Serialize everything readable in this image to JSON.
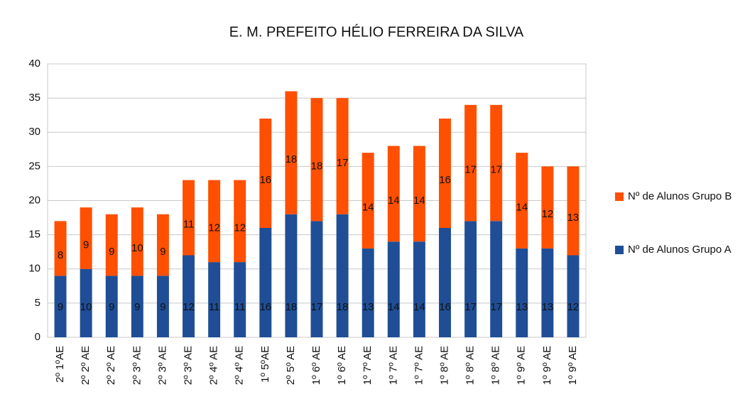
{
  "chart_data": {
    "type": "stacked_bar",
    "title": "E. M. PREFEITO HÉLIO FERREIRA DA SILVA",
    "categories": [
      "2º 1ºAE",
      "2º 2º AE",
      "2º 2º AE",
      "2º 3º AE",
      "2º 3º AE",
      "2º 3º AE",
      "2º 4º AE",
      "2º 4º AE",
      "1º 5ºAE",
      "2º 5º AE",
      "1º 6º AE",
      "1º 6º AE",
      "1º 7º AE",
      "1º 7º AE",
      "1º 7º AE",
      "1º 8º AE",
      "1º 8º AE",
      "1º 8º AE",
      "1º 9º AE",
      "1º 9º AE",
      "1º 9º AE"
    ],
    "series": [
      {
        "name": "Nº de Alunos Grupo A",
        "color": "#1f4e96",
        "values": [
          9,
          10,
          9,
          9,
          9,
          12,
          11,
          11,
          16,
          18,
          17,
          18,
          13,
          14,
          14,
          16,
          17,
          17,
          13,
          13,
          12
        ]
      },
      {
        "name": "Nº de Alunos Grupo B",
        "color": "#ff4f00",
        "values": [
          8,
          9,
          9,
          10,
          9,
          11,
          12,
          12,
          16,
          18,
          18,
          17,
          14,
          14,
          14,
          16,
          17,
          17,
          14,
          12,
          13
        ]
      }
    ],
    "ylim": [
      0,
      40
    ],
    "yticks": [
      0,
      5,
      10,
      15,
      20,
      25,
      30,
      35,
      40
    ],
    "grid": true,
    "legend": "right"
  }
}
